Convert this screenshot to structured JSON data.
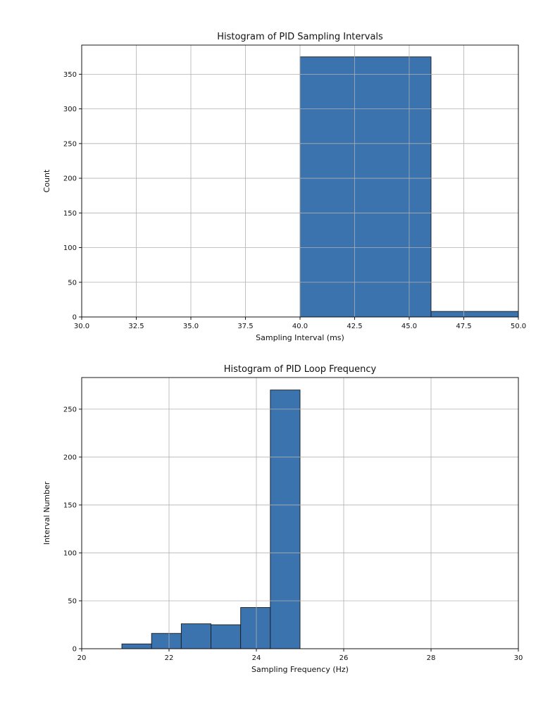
{
  "chart_data": [
    {
      "type": "bar",
      "title": "Histogram of PID Sampling Intervals",
      "xlabel": "Sampling Interval (ms)",
      "ylabel": "Count",
      "xlim": [
        30.0,
        50.0
      ],
      "ylim": [
        0,
        392
      ],
      "xticks": [
        30.0,
        32.5,
        35.0,
        37.5,
        40.0,
        42.5,
        45.0,
        47.5,
        50.0
      ],
      "xtick_labels": [
        "30.0",
        "32.5",
        "35.0",
        "37.5",
        "40.0",
        "42.5",
        "45.0",
        "47.5",
        "50.0"
      ],
      "yticks": [
        0,
        50,
        100,
        150,
        200,
        250,
        300,
        350
      ],
      "ytick_labels": [
        "0",
        "50",
        "100",
        "150",
        "200",
        "250",
        "300",
        "350"
      ],
      "grid": true,
      "color": "#3a73ad",
      "bins": [
        {
          "start": 40.0,
          "end": 46.0,
          "count": 375
        },
        {
          "start": 46.0,
          "end": 52.0,
          "count": 8
        }
      ]
    },
    {
      "type": "bar",
      "title": "Histogram of PID Loop Frequency",
      "xlabel": "Sampling Frequency (Hz)",
      "ylabel": "Interval Number",
      "xlim": [
        20,
        30
      ],
      "ylim": [
        0,
        283
      ],
      "xticks": [
        20,
        22,
        24,
        26,
        28,
        30
      ],
      "xtick_labels": [
        "20",
        "22",
        "24",
        "26",
        "28",
        "30"
      ],
      "yticks": [
        0,
        50,
        100,
        150,
        200,
        250
      ],
      "ytick_labels": [
        "0",
        "50",
        "100",
        "150",
        "200",
        "250"
      ],
      "grid": true,
      "color": "#3a73ad",
      "bins": [
        {
          "start": 20.92,
          "end": 21.6,
          "count": 5
        },
        {
          "start": 21.6,
          "end": 22.28,
          "count": 16
        },
        {
          "start": 22.28,
          "end": 22.96,
          "count": 26
        },
        {
          "start": 22.96,
          "end": 23.64,
          "count": 25
        },
        {
          "start": 23.64,
          "end": 24.32,
          "count": 43
        },
        {
          "start": 24.32,
          "end": 25.0,
          "count": 270
        }
      ]
    }
  ]
}
